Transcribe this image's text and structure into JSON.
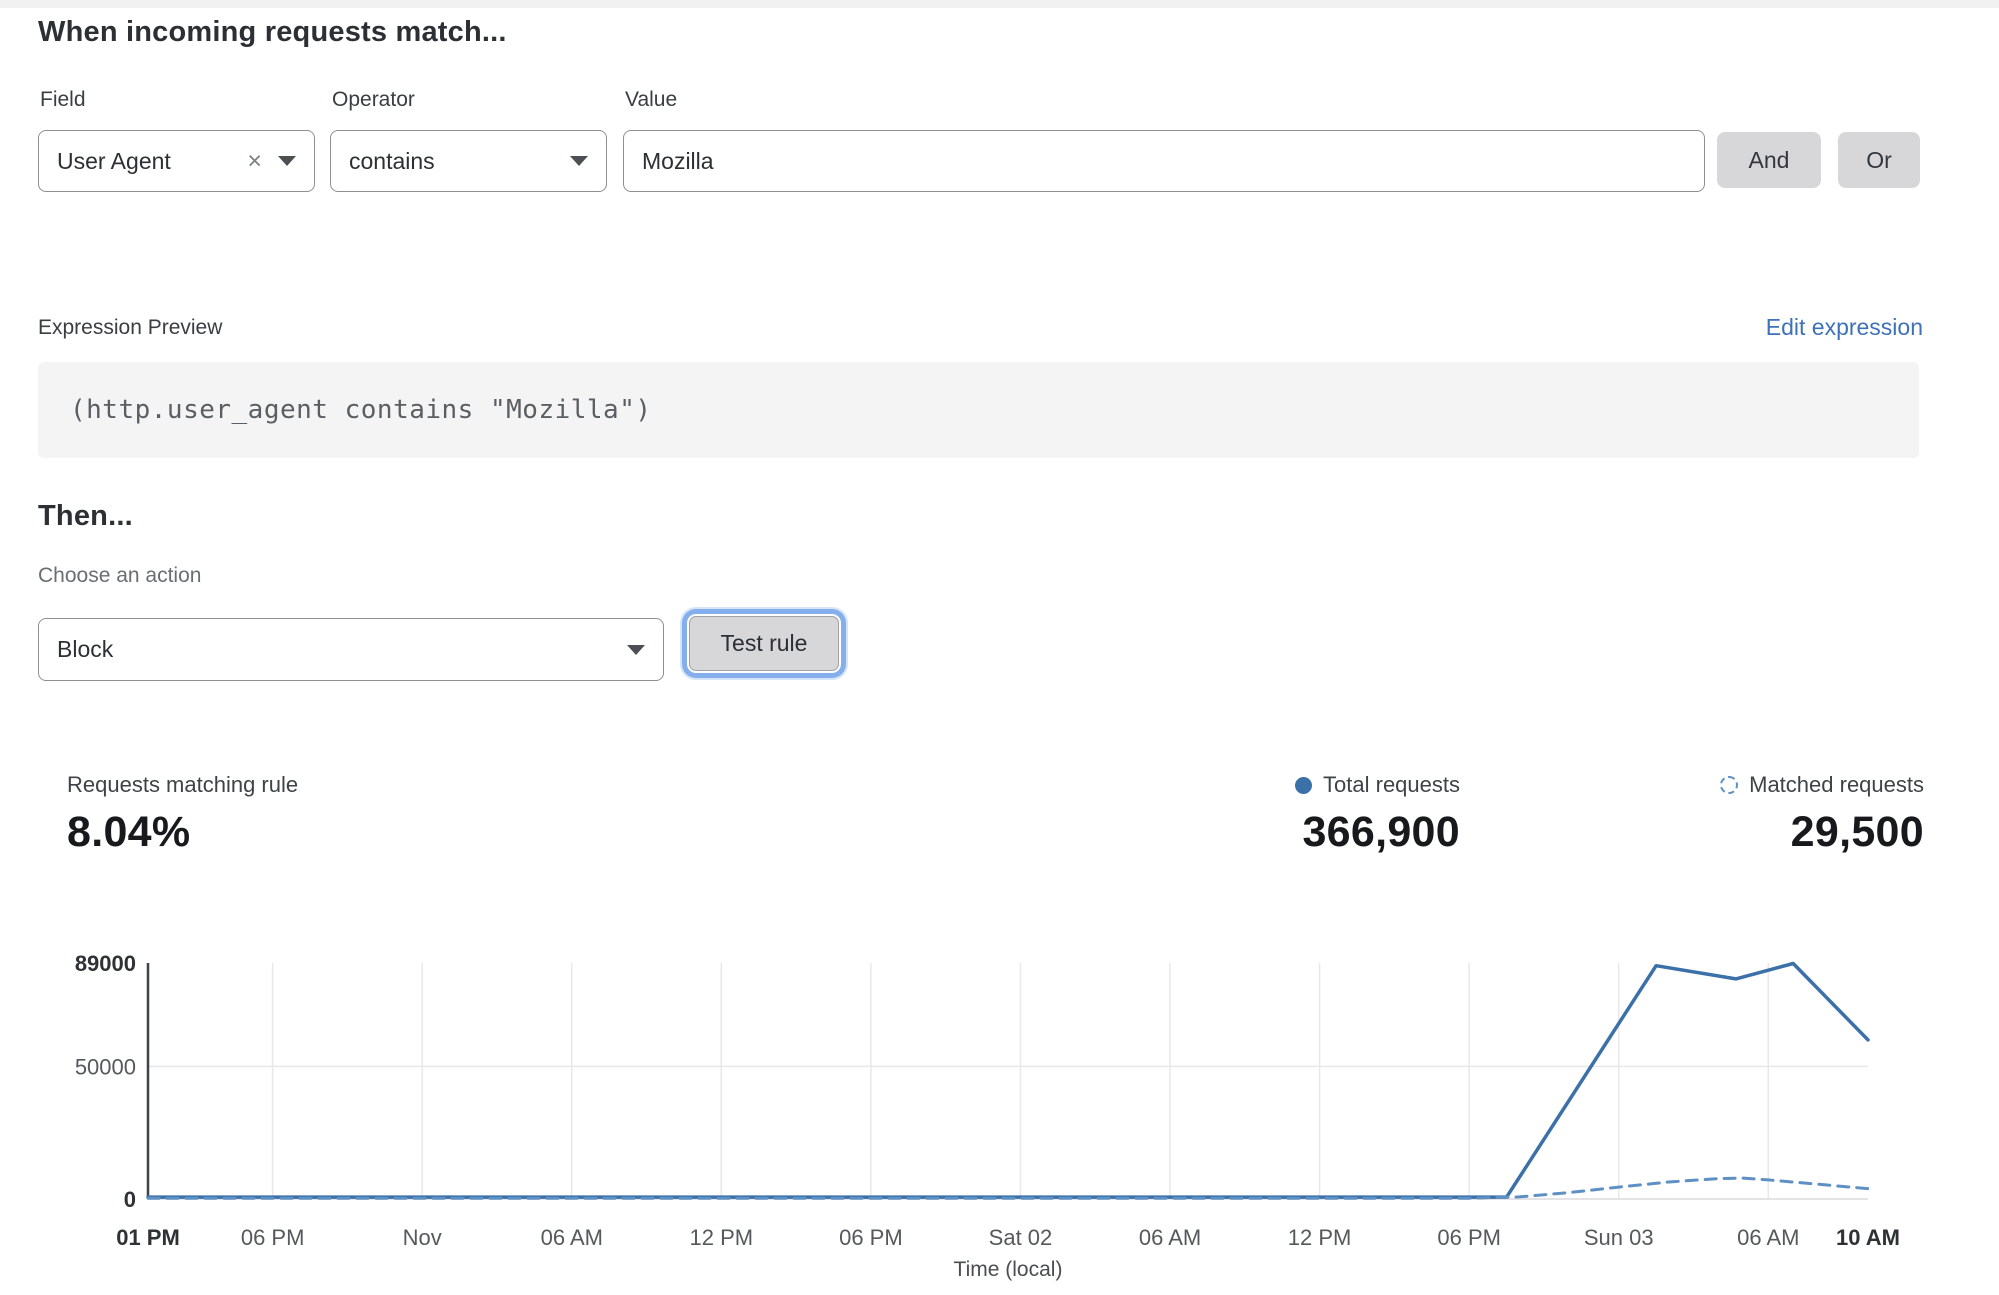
{
  "rule_builder": {
    "heading": "When incoming requests match...",
    "field": {
      "label": "Field",
      "value": "User Agent",
      "clear_icon": "×"
    },
    "operator": {
      "label": "Operator",
      "value": "contains"
    },
    "value": {
      "label": "Value",
      "value": "Mozilla"
    },
    "and_label": "And",
    "or_label": "Or"
  },
  "expression": {
    "label": "Expression Preview",
    "edit_link": "Edit expression",
    "code": "(http.user_agent contains \"Mozilla\")"
  },
  "then_section": {
    "heading": "Then...",
    "action_label": "Choose an action",
    "action_value": "Block",
    "test_button_label": "Test rule"
  },
  "stats": {
    "matching": {
      "label": "Requests matching rule",
      "value": "8.04%"
    },
    "total": {
      "label": "Total requests",
      "value": "366,900"
    },
    "matched": {
      "label": "Matched requests",
      "value": "29,500"
    }
  },
  "colors": {
    "line_blue": "#3b70a8",
    "dashed_blue": "#5f90c3",
    "link_blue": "#3e71b8",
    "focus_ring_blue": "#84aeec",
    "grid_gray": "#e8e8ea",
    "axis_dark": "#3f4246"
  },
  "chart_data": {
    "type": "line",
    "xlabel": "Time (local)",
    "ylim": [
      0,
      89000
    ],
    "xrange_hours": [
      0,
      69
    ],
    "grid": "vertical at each x tick (inner), horizontal at 50000",
    "legend_position": "above-right",
    "yticks": [
      {
        "value": 0,
        "label": "0",
        "bold": true
      },
      {
        "value": 50000,
        "label": "50000",
        "bold": false
      },
      {
        "value": 89000,
        "label": "89000",
        "bold": true
      }
    ],
    "xticks": [
      {
        "hour": 0,
        "label": "01 PM",
        "bold": true
      },
      {
        "hour": 5,
        "label": "06 PM",
        "bold": false
      },
      {
        "hour": 11,
        "label": "Nov",
        "bold": false
      },
      {
        "hour": 17,
        "label": "06 AM",
        "bold": false
      },
      {
        "hour": 23,
        "label": "12 PM",
        "bold": false
      },
      {
        "hour": 29,
        "label": "06 PM",
        "bold": false
      },
      {
        "hour": 35,
        "label": "Sat 02",
        "bold": false
      },
      {
        "hour": 41,
        "label": "06 AM",
        "bold": false
      },
      {
        "hour": 47,
        "label": "12 PM",
        "bold": false
      },
      {
        "hour": 53,
        "label": "06 PM",
        "bold": false
      },
      {
        "hour": 59,
        "label": "Sun 03",
        "bold": false
      },
      {
        "hour": 65,
        "label": "06 AM",
        "bold": false
      },
      {
        "hour": 69,
        "label": "10 AM",
        "bold": true
      }
    ],
    "series": [
      {
        "name": "Total requests",
        "style": "solid",
        "color": "#3b70a8",
        "points": [
          [
            0,
            700
          ],
          [
            10,
            700
          ],
          [
            20,
            700
          ],
          [
            30,
            700
          ],
          [
            40,
            700
          ],
          [
            50,
            700
          ],
          [
            53,
            700
          ],
          [
            54.5,
            700
          ],
          [
            60.5,
            88000
          ],
          [
            63.7,
            83000
          ],
          [
            66,
            88800
          ],
          [
            69,
            60000
          ]
        ]
      },
      {
        "name": "Matched requests",
        "style": "dashed",
        "color": "#5f90c3",
        "points": [
          [
            0,
            300
          ],
          [
            10,
            300
          ],
          [
            20,
            300
          ],
          [
            30,
            300
          ],
          [
            40,
            300
          ],
          [
            50,
            300
          ],
          [
            53,
            300
          ],
          [
            55,
            800
          ],
          [
            57,
            2400
          ],
          [
            59,
            4500
          ],
          [
            61,
            6400
          ],
          [
            63,
            7700
          ],
          [
            64,
            7900
          ],
          [
            65,
            7200
          ],
          [
            67,
            5600
          ],
          [
            69,
            3900
          ]
        ]
      }
    ]
  }
}
